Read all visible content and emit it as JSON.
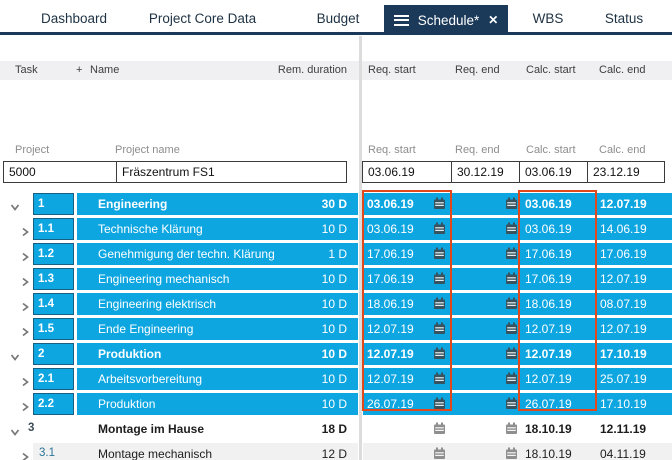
{
  "tab_bar": {
    "tabs": [
      {
        "label": "Dashboard",
        "active": false
      },
      {
        "label": "Project Core Data",
        "active": false
      },
      {
        "label": "Budget",
        "active": false
      },
      {
        "label": "Schedule*",
        "active": true
      },
      {
        "label": "WBS",
        "active": false
      },
      {
        "label": "Status",
        "active": false
      }
    ],
    "active_tab_close_icon": "✕"
  },
  "columns": {
    "task": "Task",
    "plus": "+",
    "name": "Name",
    "rem_duration": "Rem. duration",
    "req_start": "Req. start",
    "req_end": "Req. end",
    "calc_start": "Calc. start",
    "calc_end": "Calc. end"
  },
  "project": {
    "label": "Project",
    "name_label": "Project name",
    "id": "5000",
    "name": "Fräszentrum FS1",
    "req_start": "03.06.19",
    "req_end": "30.12.19",
    "calc_start": "03.06.19",
    "calc_end": "23.12.19"
  },
  "rows": [
    {
      "task": "1",
      "name": "Engineering",
      "duration": "30 D",
      "req_start": "03.06.19",
      "req_end": "",
      "calc_start": "03.06.19",
      "calc_end": "12.07.19",
      "level": 1,
      "expanded": true,
      "highlighted": true,
      "shaded": false
    },
    {
      "task": "1.1",
      "name": "Technische Klärung",
      "duration": "10 D",
      "req_start": "03.06.19",
      "req_end": "",
      "calc_start": "03.06.19",
      "calc_end": "14.06.19",
      "level": 2,
      "expanded": false,
      "highlighted": true,
      "shaded": false
    },
    {
      "task": "1.2",
      "name": "Genehmigung der techn. Klärung",
      "duration": "1 D",
      "req_start": "17.06.19",
      "req_end": "",
      "calc_start": "17.06.19",
      "calc_end": "17.06.19",
      "level": 2,
      "expanded": false,
      "highlighted": true,
      "shaded": false
    },
    {
      "task": "1.3",
      "name": "Engineering mechanisch",
      "duration": "10 D",
      "req_start": "17.06.19",
      "req_end": "",
      "calc_start": "17.06.19",
      "calc_end": "12.07.19",
      "level": 2,
      "expanded": false,
      "highlighted": true,
      "shaded": false
    },
    {
      "task": "1.4",
      "name": "Engineering elektrisch",
      "duration": "10 D",
      "req_start": "18.06.19",
      "req_end": "",
      "calc_start": "18.06.19",
      "calc_end": "08.07.19",
      "level": 2,
      "expanded": false,
      "highlighted": true,
      "shaded": false
    },
    {
      "task": "1.5",
      "name": "Ende Engineering",
      "duration": "10 D",
      "req_start": "12.07.19",
      "req_end": "",
      "calc_start": "12.07.19",
      "calc_end": "12.07.19",
      "level": 2,
      "expanded": false,
      "highlighted": true,
      "shaded": false
    },
    {
      "task": "2",
      "name": "Produktion",
      "duration": "10 D",
      "req_start": "12.07.19",
      "req_end": "",
      "calc_start": "12.07.19",
      "calc_end": "17.10.19",
      "level": 1,
      "expanded": true,
      "highlighted": true,
      "shaded": false
    },
    {
      "task": "2.1",
      "name": "Arbeitsvorbereitung",
      "duration": "10 D",
      "req_start": "12.07.19",
      "req_end": "",
      "calc_start": "12.07.19",
      "calc_end": "25.07.19",
      "level": 2,
      "expanded": false,
      "highlighted": true,
      "shaded": false
    },
    {
      "task": "2.2",
      "name": "Produktion",
      "duration": "10 D",
      "req_start": "26.07.19",
      "req_end": "",
      "calc_start": "26.07.19",
      "calc_end": "17.10.19",
      "level": 2,
      "expanded": false,
      "highlighted": true,
      "shaded": false
    },
    {
      "task": "3",
      "name": "Montage im Hause",
      "duration": "18 D",
      "req_start": "",
      "req_end": "",
      "calc_start": "18.10.19",
      "calc_end": "12.11.19",
      "level": 1,
      "expanded": true,
      "highlighted": false,
      "shaded": false
    },
    {
      "task": "3.1",
      "name": "Montage mechanisch",
      "duration": "12 D",
      "req_start": "",
      "req_end": "",
      "calc_start": "18.10.19",
      "calc_end": "04.11.19",
      "level": 2,
      "expanded": false,
      "highlighted": false,
      "shaded": true
    }
  ],
  "colors": {
    "highlight_row": "#0ea6e1",
    "marker_box": "#e1481c",
    "active_tab": "#1b3a5a"
  }
}
